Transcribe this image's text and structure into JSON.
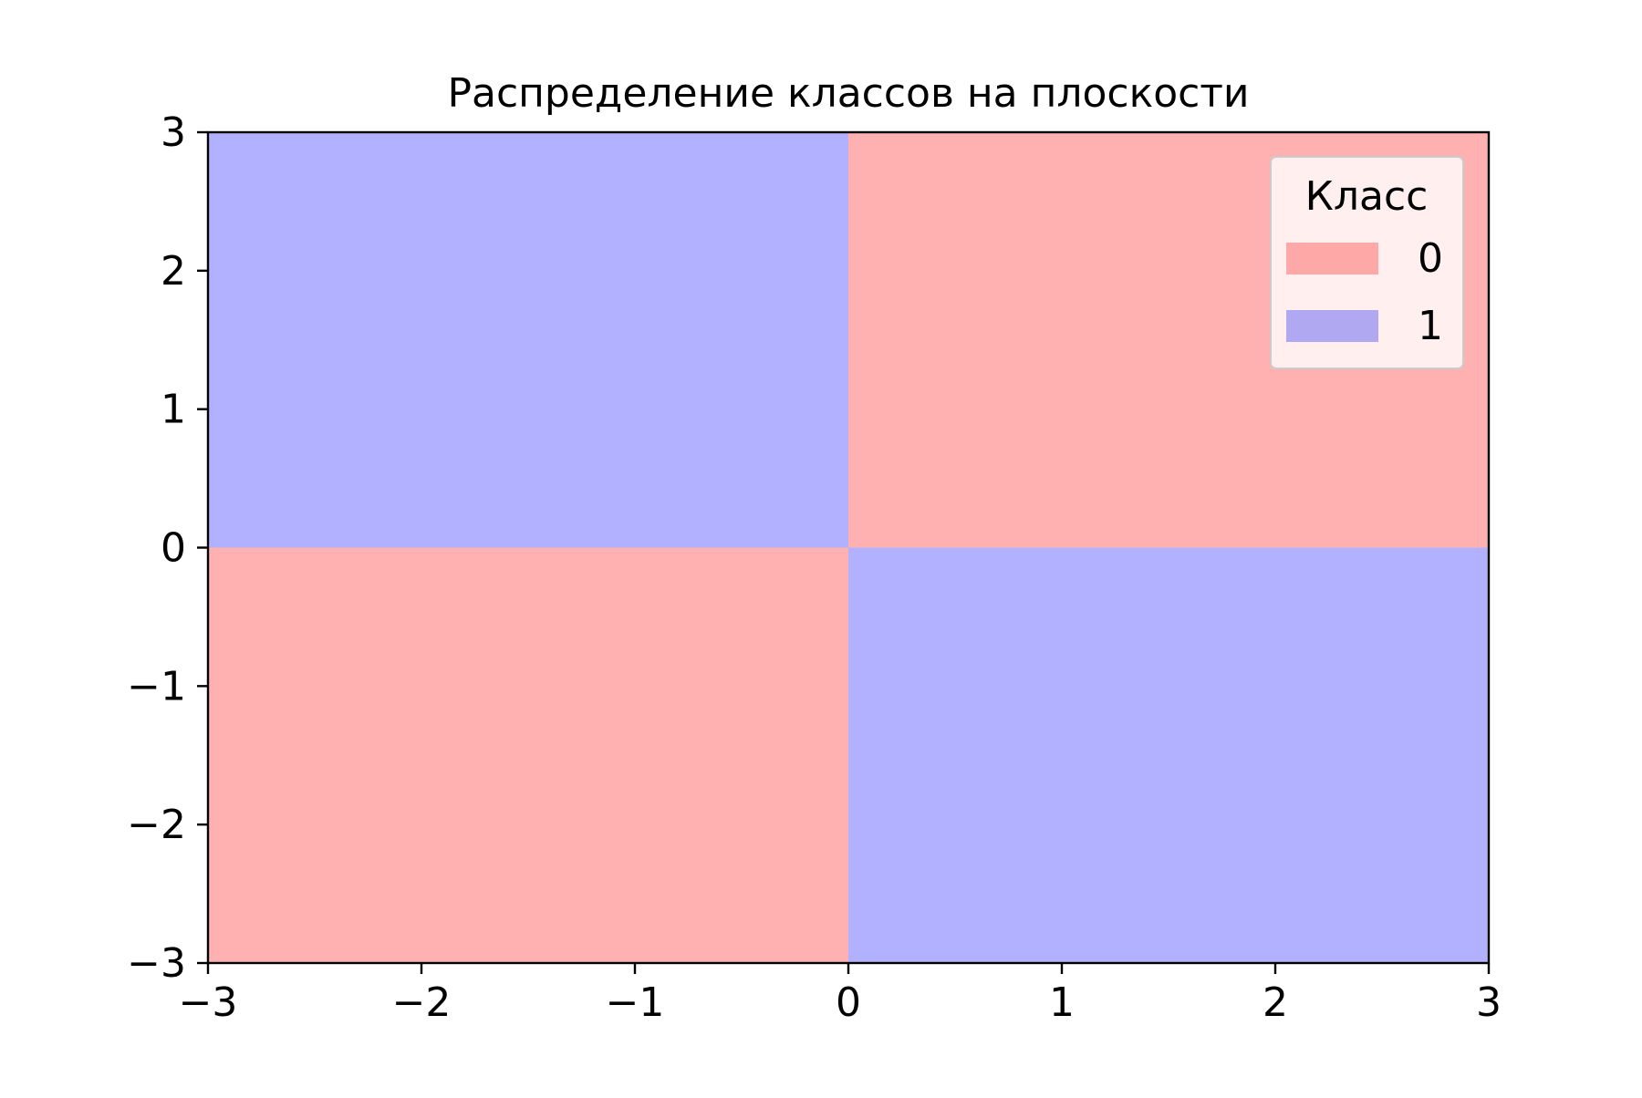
{
  "chart_data": {
    "type": "heatmap",
    "title": "Распределение классов на плоскости",
    "xlabel": "",
    "ylabel": "",
    "xlim": [
      -3,
      3
    ],
    "ylim": [
      -3,
      3
    ],
    "xticks": [
      -3,
      -2,
      -1,
      0,
      1,
      2,
      3
    ],
    "yticks": [
      -3,
      -2,
      -1,
      0,
      1,
      2,
      3
    ],
    "xtick_labels": [
      "−3",
      "−2",
      "−1",
      "0",
      "1",
      "2",
      "3"
    ],
    "ytick_labels": [
      "−3",
      "−2",
      "−1",
      "0",
      "1",
      "2",
      "3"
    ],
    "grid": false,
    "regions": [
      {
        "x": [
          -3,
          0
        ],
        "y": [
          0,
          3
        ],
        "class": "1"
      },
      {
        "x": [
          0,
          3
        ],
        "y": [
          0,
          3
        ],
        "class": "0"
      },
      {
        "x": [
          -3,
          0
        ],
        "y": [
          -3,
          0
        ],
        "class": "0"
      },
      {
        "x": [
          0,
          3
        ],
        "y": [
          -3,
          0
        ],
        "class": "1"
      }
    ],
    "legend": {
      "title": "Класс",
      "placement": "top-right",
      "entries": [
        {
          "label": "0",
          "color": "#ffa8a8"
        },
        {
          "label": "1",
          "color": "#b0a8f0"
        }
      ]
    },
    "class_colors": {
      "0": "#ffb1b1",
      "1": "#b1b1ff"
    }
  }
}
